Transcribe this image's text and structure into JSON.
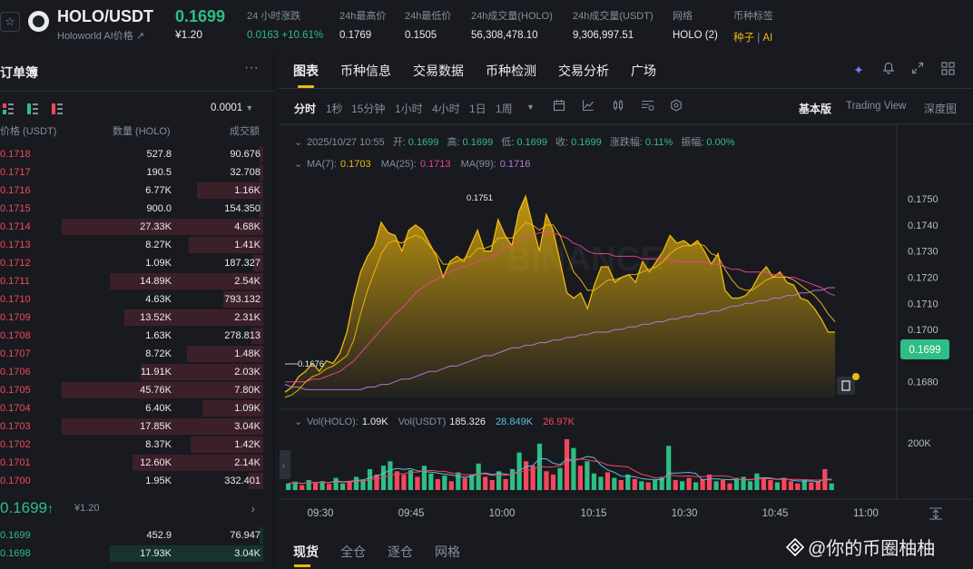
{
  "header": {
    "star_icon": "star-icon",
    "pair": "HOLO/USDT",
    "subtitle": "Holoworld AI价格",
    "subtitle_arrow": "↗",
    "price": "0.1699",
    "price_usd": "¥1.20",
    "stats": [
      {
        "label": "24 小时涨跌",
        "value": "0.0163 +10.61%",
        "green": true
      },
      {
        "label": "24h最高价",
        "value": "0.1769"
      },
      {
        "label": "24h最低价",
        "value": "0.1505"
      },
      {
        "label": "24h成交量(HOLO)",
        "value": "56,308,478.10"
      },
      {
        "label": "24h成交量(USDT)",
        "value": "9,306,997.51"
      },
      {
        "label": "网络",
        "value": "HOLO (2)"
      }
    ],
    "tags_label": "币种标签",
    "tags": [
      "种子",
      "AI"
    ]
  },
  "orderbook": {
    "title": "订单簿",
    "more": "···",
    "precision": "0.0001",
    "col_price": "价格 (USDT)",
    "col_qty": "数量 (HOLO)",
    "col_total": "成交额",
    "asks": [
      {
        "p": "0.1718",
        "q": "527.8",
        "t": "90.676",
        "depth": 0.02
      },
      {
        "p": "0.1717",
        "q": "190.5",
        "t": "32.708",
        "depth": 0.02
      },
      {
        "p": "0.1716",
        "q": "6.77K",
        "t": "1.16K",
        "depth": 0.33
      },
      {
        "p": "0.1715",
        "q": "900.0",
        "t": "154.350",
        "depth": 0.02
      },
      {
        "p": "0.1714",
        "q": "27.33K",
        "t": "4.68K",
        "depth": 1.0
      },
      {
        "p": "0.1713",
        "q": "8.27K",
        "t": "1.41K",
        "depth": 0.37
      },
      {
        "p": "0.1712",
        "q": "1.09K",
        "t": "187.327",
        "depth": 0.05
      },
      {
        "p": "0.1711",
        "q": "14.89K",
        "t": "2.54K",
        "depth": 0.76
      },
      {
        "p": "0.1710",
        "q": "4.63K",
        "t": "793.132",
        "depth": 0.2
      },
      {
        "p": "0.1709",
        "q": "13.52K",
        "t": "2.31K",
        "depth": 0.69
      },
      {
        "p": "0.1708",
        "q": "1.63K",
        "t": "278.813",
        "depth": 0.06
      },
      {
        "p": "0.1707",
        "q": "8.72K",
        "t": "1.48K",
        "depth": 0.38
      },
      {
        "p": "0.1706",
        "q": "11.91K",
        "t": "2.03K",
        "depth": 0.61
      },
      {
        "p": "0.1705",
        "q": "45.76K",
        "t": "7.80K",
        "depth": 1.0
      },
      {
        "p": "0.1704",
        "q": "6.40K",
        "t": "1.09K",
        "depth": 0.3
      },
      {
        "p": "0.1703",
        "q": "17.85K",
        "t": "3.04K",
        "depth": 1.0
      },
      {
        "p": "0.1702",
        "q": "8.37K",
        "t": "1.42K",
        "depth": 0.36
      },
      {
        "p": "0.1701",
        "q": "12.60K",
        "t": "2.14K",
        "depth": 0.65
      },
      {
        "p": "0.1700",
        "q": "1.95K",
        "t": "332.401",
        "depth": 0.07
      }
    ],
    "mid_price": "0.1699",
    "mid_arrow": "↑",
    "mid_usd": "¥1.20",
    "bids": [
      {
        "p": "0.1699",
        "q": "452.9",
        "t": "76.947",
        "depth": 0.02
      },
      {
        "p": "0.1698",
        "q": "17.93K",
        "t": "3.04K",
        "depth": 0.76
      }
    ]
  },
  "chart_panel": {
    "tabs": [
      "图表",
      "币种信息",
      "交易数据",
      "币种检测",
      "交易分析",
      "广场"
    ],
    "intervals": [
      "分时",
      "1秒",
      "15分钟",
      "1小时",
      "4小时",
      "1日",
      "1周"
    ],
    "views": [
      "基本版",
      "Trading View",
      "深度图"
    ],
    "info": {
      "date": "2025/10/27 10:55",
      "open_label": "开:",
      "open": "0.1699",
      "high_label": "高:",
      "high": "0.1699",
      "low_label": "低:",
      "low": "0.1699",
      "close_label": "收:",
      "close": "0.1699",
      "chg_label": "涨跌幅:",
      "chg": "0.11%",
      "amp_label": "振幅:",
      "amp": "0.00%"
    },
    "ma": {
      "ma7_label": "MA(7):",
      "ma7": "0.1703",
      "ma25_label": "MA(25):",
      "ma25": "0.1713",
      "ma99_label": "MA(99):",
      "ma99": "0.1716"
    },
    "vol": {
      "label": "Vol(HOLO):",
      "value": "1.09K",
      "usdt_label": "Vol(USDT)",
      "usdt": "185.326",
      "ma1": "28.849K",
      "ma2": "26.97K"
    },
    "price_tag": "0.1699",
    "high_marker": "0.1751",
    "low_marker": "0.1676",
    "vol_axis": "200K",
    "watermark": "BINANCE"
  },
  "chart_data": {
    "type": "area",
    "x_ticks": [
      "09:30",
      "09:45",
      "10:00",
      "10:15",
      "10:30",
      "10:45",
      "11:00"
    ],
    "y_ticks": [
      0.175,
      0.174,
      0.173,
      0.172,
      0.171,
      0.17,
      0.169,
      0.168
    ],
    "ylim": [
      0.1674,
      0.1758
    ],
    "price": [
      0.1676,
      0.1678,
      0.1682,
      0.1684,
      0.1687,
      0.1684,
      0.1688,
      0.1687,
      0.1691,
      0.1699,
      0.1712,
      0.1722,
      0.1728,
      0.1732,
      0.1741,
      0.1737,
      0.1736,
      0.173,
      0.1738,
      0.174,
      0.1738,
      0.1733,
      0.1728,
      0.172,
      0.1726,
      0.1728,
      0.1726,
      0.1732,
      0.1738,
      0.173,
      0.173,
      0.1742,
      0.1736,
      0.1732,
      0.1745,
      0.1751,
      0.174,
      0.173,
      0.1744,
      0.1738,
      0.1726,
      0.1714,
      0.1712,
      0.1714,
      0.1708,
      0.1717,
      0.1724,
      0.1724,
      0.1718,
      0.172,
      0.1721,
      0.1718,
      0.1726,
      0.1722,
      0.1726,
      0.173,
      0.1736,
      0.1733,
      0.1734,
      0.1732,
      0.1734,
      0.173,
      0.1725,
      0.1729,
      0.1715,
      0.1712,
      0.1712,
      0.1713,
      0.1716,
      0.1721,
      0.1724,
      0.172,
      0.1722,
      0.1718,
      0.1717,
      0.1712,
      0.1711,
      0.1708,
      0.1704,
      0.1699,
      0.1699
    ],
    "ma7": [
      0.1674,
      0.1675,
      0.1677,
      0.168,
      0.1682,
      0.1683,
      0.1685,
      0.1686,
      0.1688,
      0.169,
      0.1696,
      0.1706,
      0.1715,
      0.1722,
      0.1729,
      0.1733,
      0.1734,
      0.1733,
      0.1735,
      0.1736,
      0.1735,
      0.1732,
      0.1729,
      0.1725,
      0.1725,
      0.1726,
      0.1727,
      0.1728,
      0.1731,
      0.1731,
      0.1732,
      0.1735,
      0.1735,
      0.1735,
      0.1738,
      0.1741,
      0.174,
      0.1738,
      0.174,
      0.174,
      0.1736,
      0.1729,
      0.1722,
      0.1719,
      0.1715,
      0.1715,
      0.1717,
      0.1719,
      0.1719,
      0.172,
      0.1721,
      0.1721,
      0.1722,
      0.1723,
      0.1724,
      0.1726,
      0.1729,
      0.1731,
      0.1732,
      0.1732,
      0.1733,
      0.1732,
      0.1729,
      0.1728,
      0.1723,
      0.1719,
      0.1716,
      0.1715,
      0.1715,
      0.1717,
      0.1719,
      0.172,
      0.172,
      0.172,
      0.1719,
      0.1717,
      0.1715,
      0.1713,
      0.171,
      0.1706,
      0.1703
    ],
    "ma25": [
      0.168,
      0.168,
      0.168,
      0.168,
      0.1681,
      0.1681,
      0.1682,
      0.1683,
      0.1684,
      0.1686,
      0.1688,
      0.1691,
      0.1694,
      0.1697,
      0.17,
      0.1703,
      0.1706,
      0.1708,
      0.1711,
      0.1714,
      0.1716,
      0.1718,
      0.1719,
      0.1721,
      0.1722,
      0.1723,
      0.1724,
      0.1725,
      0.1726,
      0.1727,
      0.1728,
      0.1729,
      0.1731,
      0.1732,
      0.1734,
      0.1735,
      0.1736,
      0.1737,
      0.1737,
      0.1737,
      0.1736,
      0.1735,
      0.1733,
      0.1732,
      0.173,
      0.1729,
      0.1729,
      0.1729,
      0.1728,
      0.1728,
      0.1728,
      0.1728,
      0.1727,
      0.1727,
      0.1727,
      0.1727,
      0.1727,
      0.1726,
      0.1726,
      0.1726,
      0.1726,
      0.1726,
      0.1725,
      0.1725,
      0.1724,
      0.1723,
      0.1723,
      0.1722,
      0.1722,
      0.1722,
      0.1722,
      0.1721,
      0.1721,
      0.172,
      0.172,
      0.1719,
      0.1718,
      0.1717,
      0.1716,
      0.1714,
      0.1713
    ],
    "ma99": [
      0.1679,
      0.1678,
      0.1678,
      0.1677,
      0.1677,
      0.1677,
      0.1677,
      0.1677,
      0.1677,
      0.1677,
      0.1677,
      0.1677,
      0.1678,
      0.1678,
      0.1679,
      0.1679,
      0.168,
      0.1681,
      0.1681,
      0.1682,
      0.1683,
      0.1684,
      0.1684,
      0.1685,
      0.1686,
      0.1686,
      0.1687,
      0.1688,
      0.1689,
      0.169,
      0.169,
      0.1691,
      0.1692,
      0.1693,
      0.1693,
      0.1694,
      0.1694,
      0.1695,
      0.1695,
      0.1696,
      0.1696,
      0.1697,
      0.1697,
      0.1698,
      0.1698,
      0.1699,
      0.1699,
      0.1699,
      0.17,
      0.17,
      0.1701,
      0.1701,
      0.1702,
      0.1702,
      0.1703,
      0.1703,
      0.1704,
      0.1704,
      0.1705,
      0.1705,
      0.1706,
      0.1706,
      0.1707,
      0.1707,
      0.1708,
      0.1709,
      0.1709,
      0.171,
      0.171,
      0.1711,
      0.1711,
      0.1712,
      0.1712,
      0.1713,
      0.1713,
      0.1714,
      0.1714,
      0.1715,
      0.1715,
      0.1716,
      0.1716
    ],
    "volume": [
      30,
      38,
      22,
      45,
      35,
      40,
      28,
      55,
      30,
      42,
      60,
      45,
      95,
      70,
      110,
      130,
      85,
      70,
      90,
      60,
      110,
      75,
      50,
      65,
      40,
      80,
      55,
      70,
      120,
      60,
      45,
      85,
      50,
      95,
      170,
      130,
      110,
      210,
      85,
      70,
      100,
      230,
      190,
      110,
      130,
      75,
      60,
      80,
      55,
      45,
      70,
      50,
      40,
      35,
      45,
      60,
      200,
      45,
      40,
      55,
      35,
      50,
      70,
      40,
      45,
      30,
      55,
      60,
      40,
      75,
      50,
      45,
      35,
      55,
      40,
      30,
      45,
      35,
      40,
      95,
      30
    ],
    "volume_up": [
      1,
      1,
      0,
      1,
      0,
      1,
      0,
      1,
      1,
      0,
      1,
      1,
      1,
      0,
      1,
      1,
      0,
      0,
      1,
      0,
      1,
      1,
      0,
      1,
      0,
      1,
      0,
      1,
      1,
      0,
      0,
      1,
      0,
      1,
      1,
      0,
      0,
      1,
      0,
      0,
      1,
      0,
      1,
      0,
      1,
      1,
      1,
      0,
      1,
      0,
      1,
      0,
      1,
      0,
      1,
      1,
      1,
      0,
      1,
      0,
      1,
      0,
      0,
      1,
      0,
      0,
      1,
      1,
      1,
      1,
      0,
      0,
      1,
      0,
      0,
      0,
      1,
      0,
      0,
      0,
      1
    ],
    "vol_ylim": [
      0,
      280
    ]
  }
}
